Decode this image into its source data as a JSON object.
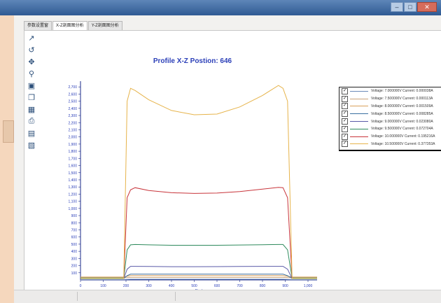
{
  "window": {
    "controls": [
      "minimize",
      "maximize",
      "close"
    ]
  },
  "tabs": [
    {
      "label": "参数设置窗",
      "active": false
    },
    {
      "label": "X-Z剖面图分析",
      "active": true
    },
    {
      "label": "Y-Z剖面图分析",
      "active": false
    }
  ],
  "toolbar": {
    "icons": [
      "pointer-icon",
      "undo-icon",
      "pan-icon",
      "zoom-icon",
      "image-icon",
      "copy-icon",
      "table-icon",
      "print-icon",
      "page-setup-icon",
      "save-icon"
    ]
  },
  "legend": {
    "items": [
      {
        "label": "Voltage: 7.000000V Current: 0.000038A",
        "color": "#6b8ab8",
        "checked": true
      },
      {
        "label": "Voltage: 7.500000V Current: 0.000113A",
        "color": "#c9a27a",
        "checked": true
      },
      {
        "label": "Voltage: 8.000000V Current: 0.001509A",
        "color": "#d9a05a",
        "checked": true
      },
      {
        "label": "Voltage: 8.500000V Current: 0.008285A",
        "color": "#3a6fa0",
        "checked": true
      },
      {
        "label": "Voltage: 9.000000V Current: 0.023080A",
        "color": "#5a5aa8",
        "checked": true
      },
      {
        "label": "Voltage: 9.500000V Current: 0.072704A",
        "color": "#2e8a5c",
        "checked": true
      },
      {
        "label": "Voltage: 10.000000V Current: 0.195216A",
        "color": "#c8343a",
        "checked": true
      },
      {
        "label": "Voltage: 10.500000V Current: 0.377353A",
        "color": "#e6b34a",
        "checked": true
      }
    ]
  },
  "chart_data": {
    "type": "line",
    "title": "Profile X-Z Postion: 646",
    "xlabel": "Pixel",
    "ylabel": "",
    "xlim": [
      0,
      1040
    ],
    "ylim": [
      0,
      2780
    ],
    "xticks": [
      0,
      100,
      200,
      300,
      400,
      500,
      600,
      700,
      800,
      900,
      1000
    ],
    "xtick_labels": [
      "0",
      "100",
      "200",
      "300",
      "400",
      "500",
      "600",
      "700",
      "800",
      "900",
      "1,000"
    ],
    "yticks": [
      100,
      200,
      300,
      400,
      500,
      600,
      700,
      800,
      900,
      1000,
      1100,
      1200,
      1300,
      1400,
      1500,
      1600,
      1700,
      1800,
      1900,
      2000,
      2100,
      2200,
      2300,
      2400,
      2500,
      2600,
      2700
    ],
    "ytick_labels": [
      "100",
      "200",
      "300",
      "400",
      "500",
      "600",
      "700",
      "800",
      "900",
      "1,000",
      "1,100",
      "1,200",
      "1,300",
      "1,400",
      "1,500",
      "1,600",
      "1,700",
      "1,800",
      "1,900",
      "2,000",
      "2,100",
      "2,200",
      "2,300",
      "2,400",
      "2,500",
      "2,600",
      "2,700"
    ],
    "grid": false,
    "x": [
      0,
      100,
      190,
      205,
      220,
      240,
      300,
      400,
      500,
      600,
      700,
      800,
      870,
      890,
      910,
      930,
      1040
    ],
    "series": [
      {
        "name": "Voltage: 7.000000V Current: 0.000038A",
        "color": "#6b8ab8",
        "values": [
          5,
          5,
          5,
          8,
          10,
          10,
          10,
          10,
          10,
          10,
          10,
          10,
          10,
          10,
          8,
          5,
          5
        ]
      },
      {
        "name": "Voltage: 7.500000V Current: 0.000113A",
        "color": "#c9a27a",
        "values": [
          30,
          30,
          30,
          32,
          35,
          35,
          35,
          35,
          35,
          35,
          35,
          35,
          35,
          35,
          32,
          30,
          30
        ]
      },
      {
        "name": "Voltage: 8.000000V Current: 0.001509A",
        "color": "#d9a05a",
        "values": [
          40,
          40,
          40,
          50,
          60,
          60,
          60,
          60,
          60,
          60,
          60,
          60,
          60,
          60,
          50,
          40,
          40
        ]
      },
      {
        "name": "Voltage: 8.500000V Current: 0.008285A",
        "color": "#3a6fa0",
        "values": [
          20,
          20,
          20,
          60,
          80,
          80,
          80,
          80,
          80,
          80,
          80,
          80,
          80,
          80,
          60,
          20,
          20
        ]
      },
      {
        "name": "Voltage: 9.000000V Current: 0.023080A",
        "color": "#5a5aa8",
        "values": [
          20,
          20,
          20,
          150,
          190,
          190,
          188,
          185,
          185,
          186,
          188,
          190,
          190,
          190,
          150,
          20,
          20
        ]
      },
      {
        "name": "Voltage: 9.500000V Current: 0.072704A",
        "color": "#2e8a5c",
        "values": [
          25,
          25,
          25,
          420,
          490,
          495,
          490,
          485,
          485,
          485,
          488,
          492,
          495,
          495,
          420,
          25,
          25
        ]
      },
      {
        "name": "Voltage: 10.000000V Current: 0.195216A",
        "color": "#c8343a",
        "values": [
          20,
          20,
          20,
          1150,
          1260,
          1290,
          1250,
          1220,
          1210,
          1215,
          1235,
          1270,
          1295,
          1290,
          1150,
          20,
          20
        ]
      },
      {
        "name": "Voltage: 10.500000V Current: 0.377353A",
        "color": "#e6b34a",
        "values": [
          20,
          20,
          20,
          2500,
          2680,
          2650,
          2520,
          2370,
          2310,
          2320,
          2420,
          2580,
          2720,
          2680,
          2500,
          20,
          20
        ]
      }
    ]
  }
}
